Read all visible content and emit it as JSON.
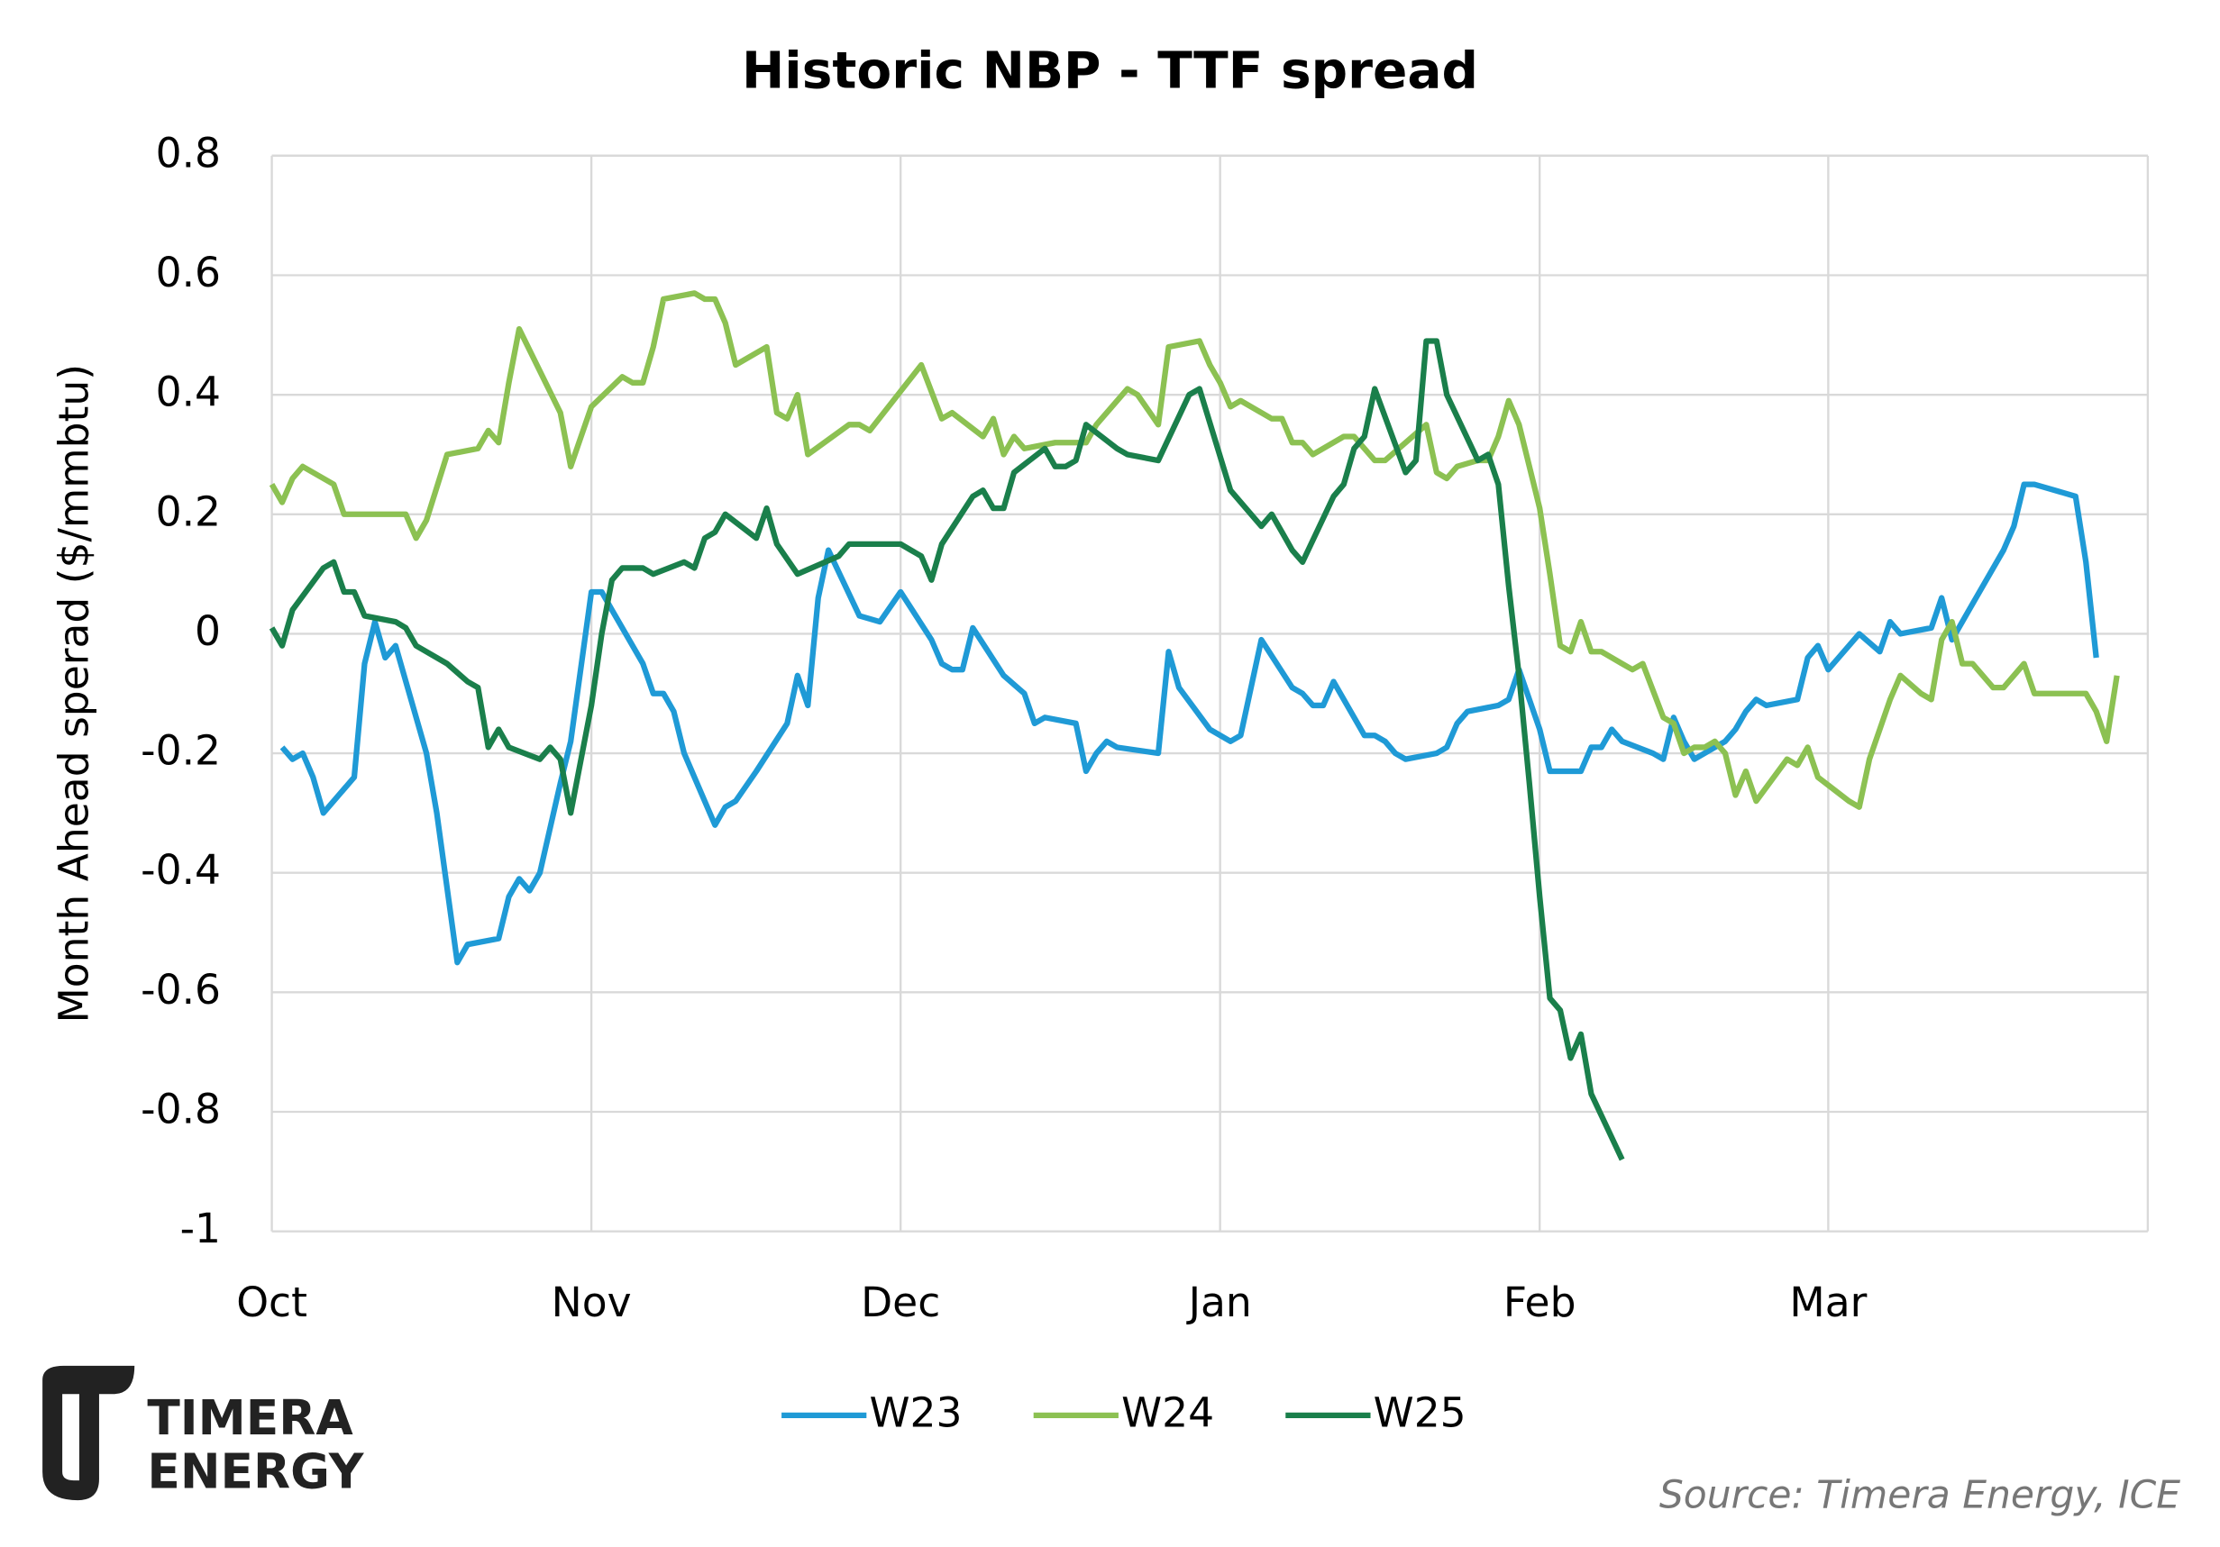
{
  "chart_data": {
    "type": "line",
    "title": "Historic NBP - TTF spread",
    "ylabel": "Month Ahead sperad ($/mmbtu)",
    "source": "Source: Timera Energy, ICE",
    "logo": [
      "TIMERA",
      "ENERGY"
    ],
    "xlim": [
      0,
      182
    ],
    "xticks": [
      {
        "value": 0,
        "label": "Oct"
      },
      {
        "value": 31,
        "label": "Nov"
      },
      {
        "value": 61,
        "label": "Dec"
      },
      {
        "value": 92,
        "label": "Jan"
      },
      {
        "value": 123,
        "label": "Feb"
      },
      {
        "value": 151,
        "label": "Mar"
      }
    ],
    "ylim": [
      -1,
      0.8
    ],
    "yticks": [
      -1,
      -0.8,
      -0.6,
      -0.4,
      -0.2,
      0,
      0.2,
      0.4,
      0.6,
      0.8
    ],
    "grid": true,
    "legend": "bottom",
    "series": [
      {
        "name": "W23",
        "color": "#1f9ad6",
        "x": [
          1,
          2,
          3,
          4,
          5,
          8,
          9,
          10,
          11,
          12,
          15,
          16,
          18,
          19,
          22,
          23,
          24,
          25,
          26,
          28,
          29,
          31,
          32,
          33,
          36,
          37,
          38,
          39,
          40,
          43,
          44,
          45,
          47,
          50,
          51,
          52,
          53,
          54,
          57,
          59,
          61,
          64,
          65,
          66,
          67,
          68,
          71,
          73,
          74,
          75,
          78,
          79,
          80,
          81,
          82,
          86,
          87,
          88,
          91,
          93,
          94,
          96,
          99,
          100,
          101,
          102,
          103,
          106,
          107,
          108,
          109,
          110,
          113,
          114,
          115,
          116,
          119,
          120,
          121,
          123,
          124,
          127,
          128,
          129,
          130,
          131,
          134,
          135,
          136,
          137,
          138,
          140,
          141,
          142,
          143,
          144,
          145,
          148,
          149,
          150,
          151,
          154,
          156,
          157,
          158,
          161,
          162,
          163,
          165,
          168,
          169,
          170,
          171,
          175,
          176,
          177
        ],
        "values": [
          -0.19,
          -0.21,
          -0.2,
          -0.24,
          -0.3,
          -0.24,
          -0.05,
          0.02,
          -0.04,
          -0.02,
          -0.2,
          -0.3,
          -0.55,
          -0.52,
          -0.51,
          -0.44,
          -0.41,
          -0.43,
          -0.4,
          -0.25,
          -0.18,
          0.07,
          0.07,
          0.04,
          -0.05,
          -0.1,
          -0.1,
          -0.13,
          -0.2,
          -0.32,
          -0.29,
          -0.28,
          -0.23,
          -0.15,
          -0.07,
          -0.12,
          0.06,
          0.14,
          0.03,
          0.02,
          0.07,
          -0.01,
          -0.05,
          -0.06,
          -0.06,
          0.01,
          -0.07,
          -0.1,
          -0.15,
          -0.14,
          -0.15,
          -0.23,
          -0.2,
          -0.18,
          -0.19,
          -0.2,
          -0.03,
          -0.09,
          -0.16,
          -0.18,
          -0.17,
          -0.01,
          -0.09,
          -0.1,
          -0.12,
          -0.12,
          -0.08,
          -0.17,
          -0.17,
          -0.18,
          -0.2,
          -0.21,
          -0.2,
          -0.19,
          -0.15,
          -0.13,
          -0.12,
          -0.11,
          -0.06,
          -0.16,
          -0.23,
          -0.23,
          -0.19,
          -0.19,
          -0.16,
          -0.18,
          -0.2,
          -0.21,
          -0.14,
          -0.18,
          -0.21,
          -0.19,
          -0.18,
          -0.16,
          -0.13,
          -0.11,
          -0.12,
          -0.11,
          -0.04,
          -0.02,
          -0.06,
          0.0,
          -0.03,
          0.02,
          0.0,
          0.01,
          0.06,
          -0.01,
          0.05,
          0.14,
          0.18,
          0.25,
          0.25,
          0.23,
          0.12,
          -0.04
        ]
      },
      {
        "name": "W24",
        "color": "#8cc152",
        "x": [
          0,
          1,
          2,
          3,
          6,
          7,
          9,
          10,
          13,
          14,
          15,
          17,
          20,
          21,
          22,
          23,
          24,
          28,
          29,
          31,
          34,
          35,
          36,
          37,
          38,
          41,
          42,
          43,
          44,
          45,
          48,
          49,
          50,
          51,
          52,
          56,
          57,
          58,
          63,
          65,
          66,
          69,
          70,
          71,
          72,
          73,
          76,
          79,
          80,
          83,
          84,
          86,
          87,
          90,
          91,
          92,
          93,
          94,
          97,
          98,
          99,
          100,
          101,
          104,
          105,
          106,
          107,
          108,
          112,
          113,
          114,
          115,
          117,
          118,
          119,
          120,
          121,
          123,
          124,
          125,
          126,
          127,
          128,
          129,
          131,
          132,
          133,
          135,
          136,
          137,
          138,
          139,
          140,
          141,
          142,
          143,
          144,
          147,
          148,
          149,
          150,
          153,
          154,
          155,
          157,
          158,
          160,
          161,
          162,
          163,
          164,
          165,
          167,
          168,
          169,
          170,
          171,
          174,
          175,
          176,
          177,
          178,
          179
        ],
        "values": [
          0.25,
          0.22,
          0.26,
          0.28,
          0.25,
          0.2,
          0.2,
          0.2,
          0.2,
          0.16,
          0.19,
          0.3,
          0.31,
          0.34,
          0.32,
          0.42,
          0.51,
          0.37,
          0.28,
          0.38,
          0.43,
          0.42,
          0.42,
          0.48,
          0.56,
          0.57,
          0.56,
          0.56,
          0.52,
          0.45,
          0.48,
          0.37,
          0.36,
          0.4,
          0.3,
          0.35,
          0.35,
          0.34,
          0.45,
          0.36,
          0.37,
          0.33,
          0.36,
          0.3,
          0.33,
          0.31,
          0.32,
          0.32,
          0.35,
          0.41,
          0.4,
          0.35,
          0.48,
          0.49,
          0.45,
          0.42,
          0.38,
          0.39,
          0.36,
          0.36,
          0.32,
          0.32,
          0.3,
          0.33,
          0.33,
          0.31,
          0.29,
          0.29,
          0.35,
          0.27,
          0.26,
          0.28,
          0.29,
          0.29,
          0.33,
          0.39,
          0.35,
          0.21,
          0.1,
          -0.02,
          -0.03,
          0.02,
          -0.03,
          -0.03,
          -0.05,
          -0.06,
          -0.05,
          -0.14,
          -0.15,
          -0.2,
          -0.19,
          -0.19,
          -0.18,
          -0.2,
          -0.27,
          -0.23,
          -0.28,
          -0.21,
          -0.22,
          -0.19,
          -0.24,
          -0.28,
          -0.29,
          -0.21,
          -0.11,
          -0.07,
          -0.1,
          -0.11,
          -0.01,
          0.02,
          -0.05,
          -0.05,
          -0.09,
          -0.09,
          -0.07,
          -0.05,
          -0.1,
          -0.1,
          -0.1,
          -0.1,
          -0.13,
          -0.18,
          -0.07
        ]
      },
      {
        "name": "W25",
        "color": "#1a7f4b",
        "x": [
          0,
          1,
          2,
          5,
          6,
          7,
          8,
          9,
          12,
          13,
          14,
          17,
          19,
          20,
          21,
          22,
          23,
          26,
          27,
          28,
          29,
          31,
          32,
          33,
          34,
          35,
          36,
          37,
          40,
          41,
          42,
          43,
          44,
          47,
          48,
          49,
          51,
          55,
          56,
          57,
          61,
          62,
          63,
          64,
          65,
          68,
          69,
          70,
          71,
          72,
          75,
          76,
          77,
          78,
          79,
          82,
          83,
          86,
          89,
          90,
          93,
          96,
          97,
          98,
          99,
          100,
          103,
          104,
          105,
          106,
          107,
          110,
          111,
          112,
          113,
          114,
          117,
          118,
          119,
          120,
          121,
          122,
          123,
          124,
          125,
          126,
          127,
          128,
          131
        ],
        "values": [
          0.01,
          -0.02,
          0.04,
          0.11,
          0.12,
          0.07,
          0.07,
          0.03,
          0.02,
          0.01,
          -0.02,
          -0.05,
          -0.08,
          -0.09,
          -0.19,
          -0.16,
          -0.19,
          -0.21,
          -0.19,
          -0.21,
          -0.3,
          -0.12,
          0.0,
          0.09,
          0.11,
          0.11,
          0.11,
          0.1,
          0.12,
          0.11,
          0.16,
          0.17,
          0.2,
          0.16,
          0.21,
          0.15,
          0.1,
          0.13,
          0.15,
          0.15,
          0.15,
          0.14,
          0.13,
          0.09,
          0.15,
          0.23,
          0.24,
          0.21,
          0.21,
          0.27,
          0.31,
          0.28,
          0.28,
          0.29,
          0.35,
          0.31,
          0.3,
          0.29,
          0.4,
          0.41,
          0.24,
          0.18,
          0.2,
          0.17,
          0.14,
          0.12,
          0.23,
          0.25,
          0.31,
          0.33,
          0.41,
          0.27,
          0.29,
          0.49,
          0.49,
          0.4,
          0.29,
          0.3,
          0.25,
          0.08,
          -0.07,
          -0.25,
          -0.44,
          -0.61,
          -0.63,
          -0.71,
          -0.67,
          -0.77,
          -0.88
        ]
      }
    ]
  }
}
